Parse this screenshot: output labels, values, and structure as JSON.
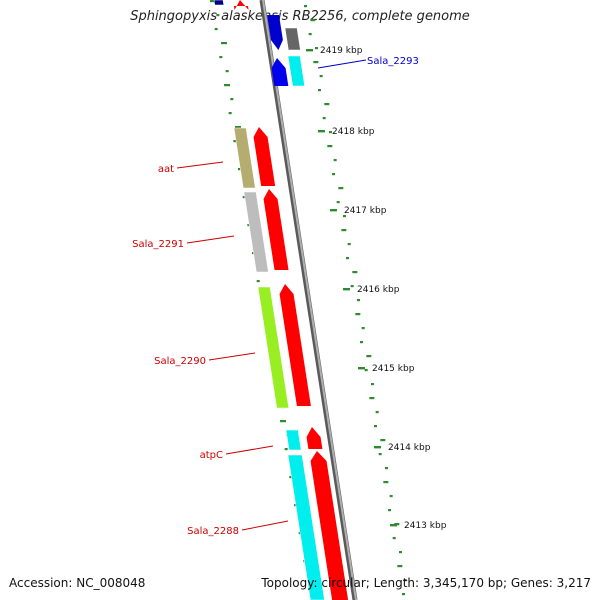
{
  "title": "Sphingopyxis alaskensis RB2256, complete genome",
  "footer": {
    "accession": "Accession: NC_008048",
    "topology": "Topology: circular; Length: 3,345,170 bp; Genes: 3,217"
  },
  "scale_labels": [
    "2419 kbp",
    "2418 kbp",
    "2417 kbp",
    "2416 kbp",
    "2415 kbp",
    "2414 kbp",
    "2413 kbp"
  ],
  "gene_labels": [
    {
      "text": "Sala_2293",
      "color": "#0000cc"
    },
    {
      "text": "aat",
      "color": "#cc0000"
    },
    {
      "text": "Sala_2291",
      "color": "#cc0000"
    },
    {
      "text": "Sala_2290",
      "color": "#cc0000"
    },
    {
      "text": "atpC",
      "color": "#cc0000"
    },
    {
      "text": "Sala_2288",
      "color": "#cc0000"
    }
  ],
  "colors": {
    "backbone": "#8c8c8c",
    "forward_strand": "#ff0000",
    "reverse_strand": "#0000ee",
    "gc_dots": "#2e8b2e",
    "cog_tan": "#b5ad70",
    "cog_grey": "#bdbdbd",
    "cog_lime": "#99ee22",
    "cog_cyan": "#00eeee",
    "cog_dark": "#666666"
  }
}
